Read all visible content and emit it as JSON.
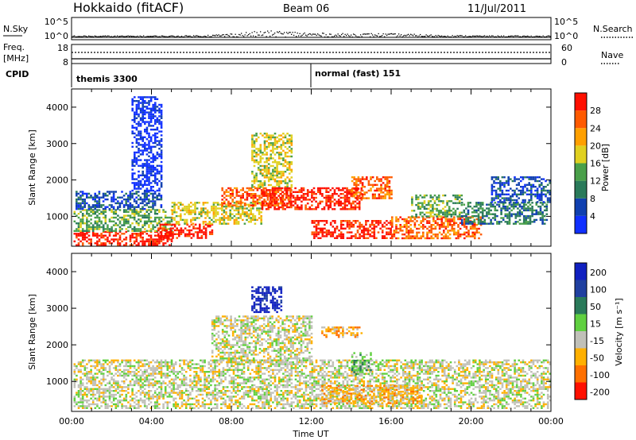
{
  "header": {
    "station": "Hokkaido (fitACF)",
    "beam": "Beam 06",
    "date": "11/Jul/2011"
  },
  "summary_panel": {
    "nsky_label": "N.Sky",
    "nsearch_label": "N.Search",
    "freq_label": "Freq.",
    "freq_unit": "[MHz]",
    "nave_label": "Nave",
    "cpid_label": "CPID",
    "nsky_ticks": [
      "10^5",
      "10^0"
    ],
    "nsearch_ticks": [
      "10^5",
      "10^0"
    ],
    "freq_ticks": [
      "18",
      "8"
    ],
    "nave_ticks": [
      "60",
      "0"
    ],
    "cpid_segments": [
      {
        "label": "themis 3300",
        "start_hour": 0
      },
      {
        "label": "normal (fast) 151",
        "start_hour": 12
      }
    ]
  },
  "chart_data": [
    {
      "type": "heatmap",
      "name": "power",
      "ylabel": "Slant Range [km]",
      "ylim": [
        180,
        4500
      ],
      "yticks": [
        "1000",
        "2000",
        "3000",
        "4000"
      ],
      "xlim_hours": [
        0,
        24
      ],
      "colorbar": {
        "title": "Power [dB]",
        "ticks": [
          "4",
          "8",
          "12",
          "16",
          "20",
          "24",
          "28"
        ],
        "colors": [
          "#1030ff",
          "#1040b0",
          "#2a7a5a",
          "#4aa04a",
          "#e0d020",
          "#ffa000",
          "#ff5a00",
          "#ff1000"
        ]
      },
      "echo_regions": [
        {
          "h0": 0.1,
          "h1": 5.0,
          "r0": 200,
          "r1": 600,
          "level": 7
        },
        {
          "h0": 0.1,
          "h1": 5.0,
          "r0": 600,
          "r1": 1200,
          "level": 3
        },
        {
          "h0": 0.2,
          "h1": 4.5,
          "r0": 1200,
          "r1": 1700,
          "level": 1
        },
        {
          "h0": 4.3,
          "h1": 7.0,
          "r0": 400,
          "r1": 800,
          "level": 7
        },
        {
          "h0": 5.0,
          "h1": 9.5,
          "r0": 800,
          "r1": 1400,
          "level": 4
        },
        {
          "h0": 7.5,
          "h1": 11.0,
          "r0": 1300,
          "r1": 1800,
          "level": 6
        },
        {
          "h0": 9.0,
          "h1": 11.0,
          "r0": 1800,
          "r1": 3300,
          "level": 4
        },
        {
          "h0": 9.5,
          "h1": 14.5,
          "r0": 1200,
          "r1": 1800,
          "level": 7
        },
        {
          "h0": 12.0,
          "h1": 16.0,
          "r0": 400,
          "r1": 900,
          "level": 7
        },
        {
          "h0": 14.0,
          "h1": 16.0,
          "r0": 1500,
          "r1": 2100,
          "level": 6
        },
        {
          "h0": 16.0,
          "h1": 20.5,
          "r0": 400,
          "r1": 1000,
          "level": 6
        },
        {
          "h0": 17.0,
          "h1": 19.5,
          "r0": 1000,
          "r1": 1600,
          "level": 3
        },
        {
          "h0": 19.5,
          "h1": 23.8,
          "r0": 800,
          "r1": 1400,
          "level": 2
        },
        {
          "h0": 21.0,
          "h1": 23.9,
          "r0": 1400,
          "r1": 2100,
          "level": 1
        },
        {
          "h0": 3.0,
          "h1": 4.5,
          "r0": 1700,
          "r1": 4300,
          "level": 0
        }
      ]
    },
    {
      "type": "heatmap",
      "name": "velocity",
      "ylabel": "Slant Range [km]",
      "xlabel": "Time UT",
      "ylim": [
        180,
        4500
      ],
      "yticks": [
        "1000",
        "2000",
        "3000",
        "4000"
      ],
      "xlim_hours": [
        0,
        24
      ],
      "xticks": [
        "00:00",
        "04:00",
        "08:00",
        "12:00",
        "16:00",
        "20:00",
        "00:00"
      ],
      "colorbar": {
        "title": "Velocity [m s⁻¹]",
        "ticks": [
          "200",
          "100",
          "50",
          "15",
          "-15",
          "-50",
          "-100",
          "-200"
        ],
        "colors": [
          "#1020c0",
          "#2040a0",
          "#2a7a5a",
          "#60d040",
          "#c0c0b8",
          "#ffb000",
          "#ff7000",
          "#ff1000"
        ]
      },
      "echo_regions": [
        {
          "h0": 0.1,
          "h1": 24.0,
          "r0": 250,
          "r1": 1600,
          "level": 4
        },
        {
          "h0": 7.0,
          "h1": 12.0,
          "r0": 1500,
          "r1": 2800,
          "level": 4
        },
        {
          "h0": 12.5,
          "h1": 17.5,
          "r0": 400,
          "r1": 900,
          "level": 5
        },
        {
          "h0": 9.0,
          "h1": 10.5,
          "r0": 2900,
          "r1": 3600,
          "level": 0
        },
        {
          "h0": 14.0,
          "h1": 15.0,
          "r0": 1200,
          "r1": 1800,
          "level": 3
        },
        {
          "h0": 12.5,
          "h1": 14.5,
          "r0": 2200,
          "r1": 2500,
          "level": 5
        }
      ]
    }
  ]
}
